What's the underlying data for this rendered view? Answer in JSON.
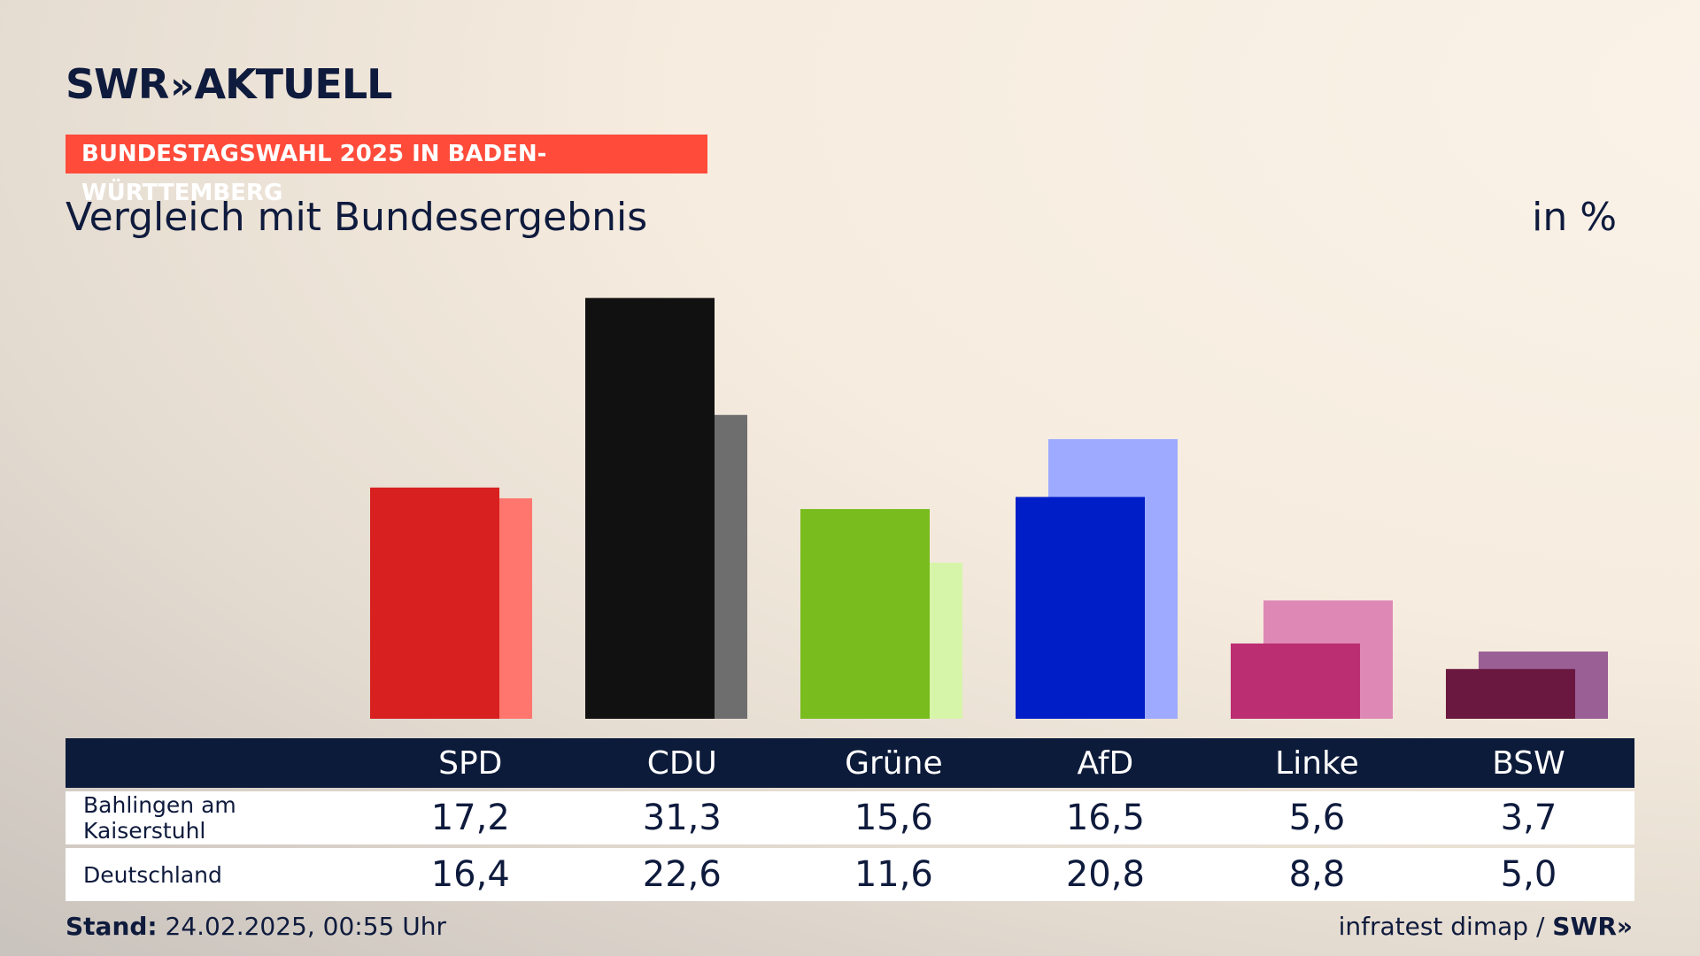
{
  "brand": {
    "logo_text": "SWR",
    "logo_chevrons": "»",
    "logo_suffix": "AKTUELL"
  },
  "banner": {
    "text": "BUNDESTAGSWAHL 2025 IN BADEN-WÜRTTEMBERG",
    "color": "#ff4b3a"
  },
  "header": {
    "title": "Vergleich mit Bundesergebnis",
    "unit": "in %"
  },
  "chart_data": {
    "type": "bar",
    "categories": [
      "SPD",
      "CDU",
      "Grüne",
      "AfD",
      "Linke",
      "BSW"
    ],
    "series": [
      {
        "name": "Bahlingen am Kaiserstuhl",
        "values": [
          17.2,
          31.3,
          15.6,
          16.5,
          5.6,
          3.7
        ],
        "colors": [
          "#d7201f",
          "#111111",
          "#79bc1e",
          "#001ec8",
          "#bc2e72",
          "#6a1840"
        ]
      },
      {
        "name": "Deutschland",
        "values": [
          16.4,
          22.6,
          11.6,
          20.8,
          8.8,
          5.0
        ],
        "colors": [
          "#ff766e",
          "#6e6e6e",
          "#d6f5a8",
          "#9eaaff",
          "#de88b5",
          "#9a5f95"
        ]
      }
    ],
    "ylim": [
      0,
      32
    ],
    "grid": false,
    "legend": "table-below"
  },
  "table": {
    "rows": [
      {
        "label": "Bahlingen am Kaiserstuhl",
        "values": [
          "17,2",
          "31,3",
          "15,6",
          "16,5",
          "5,6",
          "3,7"
        ]
      },
      {
        "label": "Deutschland",
        "values": [
          "16,4",
          "22,6",
          "11,6",
          "20,8",
          "8,8",
          "5,0"
        ]
      }
    ]
  },
  "footer": {
    "stand_label": "Stand:",
    "stand_value": "24.02.2025, 00:55 Uhr",
    "source": "infratest dimap /",
    "source_logo": "SWR»"
  }
}
